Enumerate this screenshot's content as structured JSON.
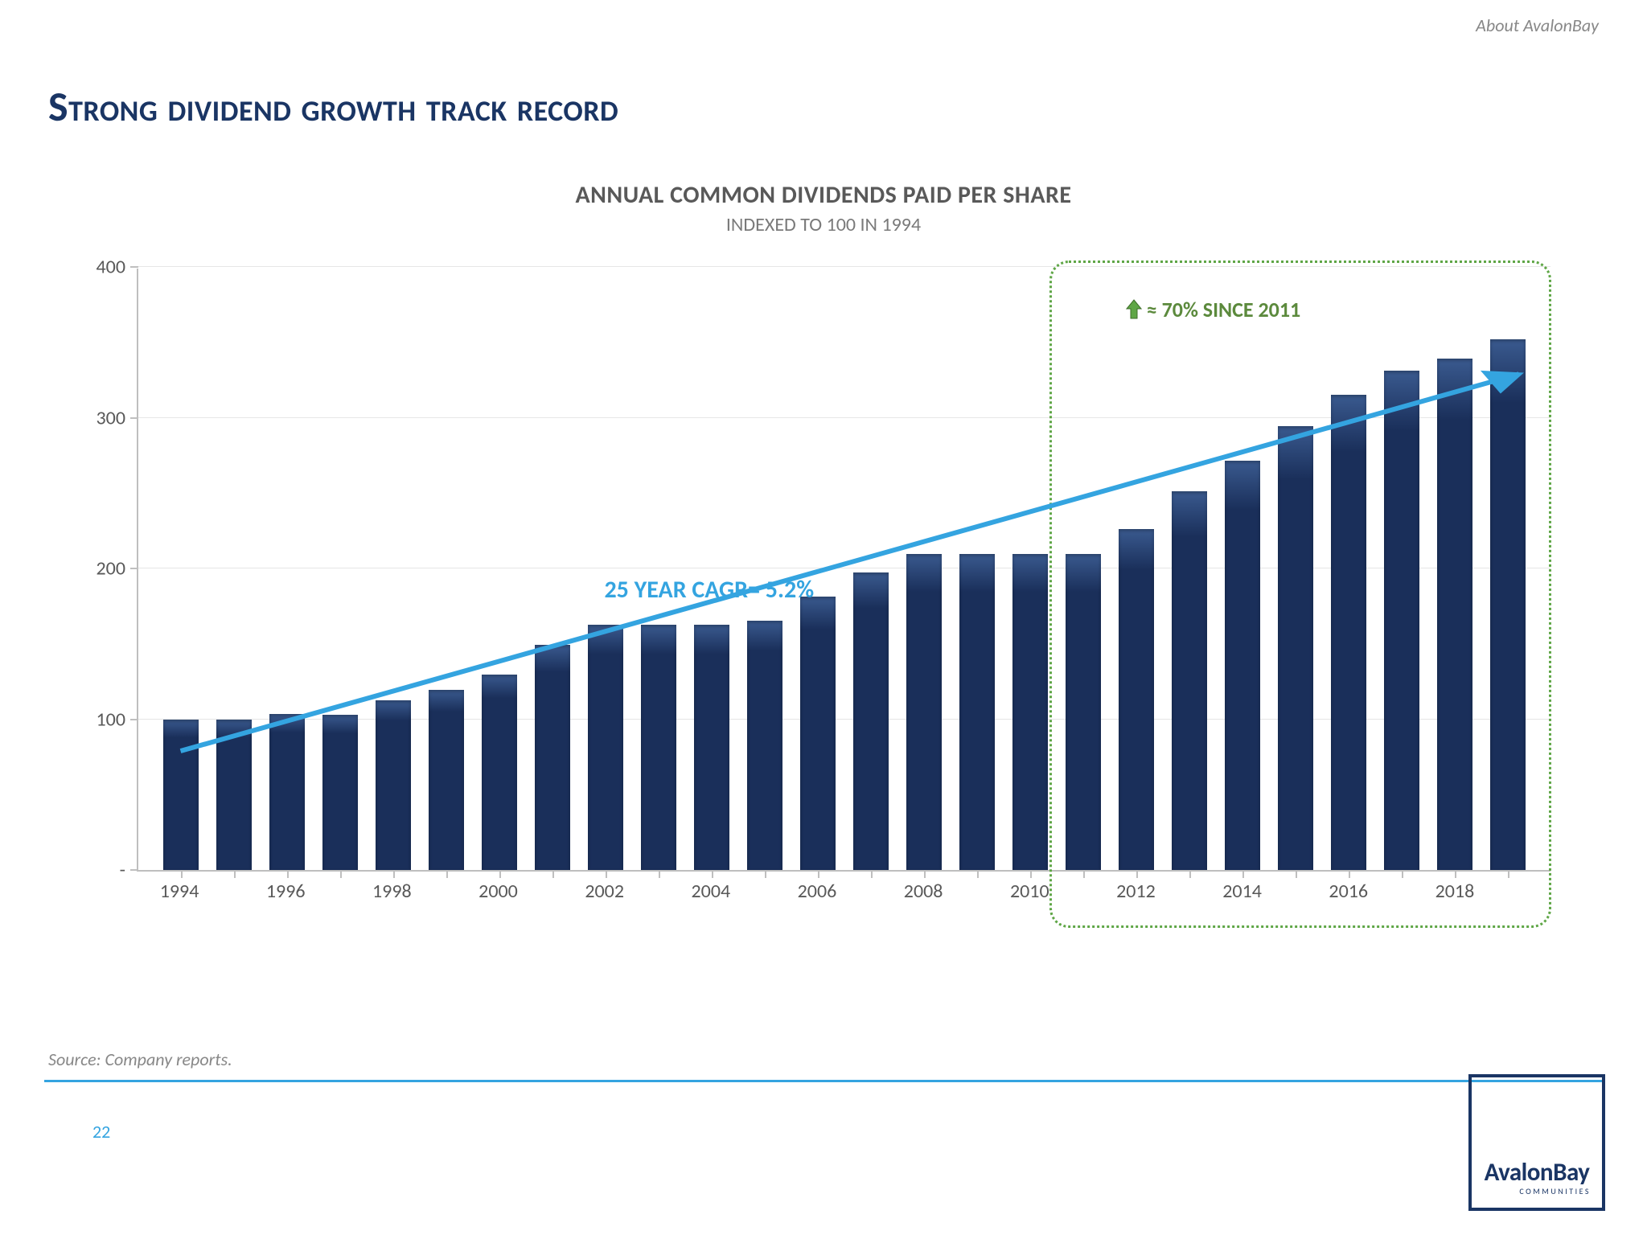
{
  "header_link": "About AvalonBay",
  "main_title": "Strong dividend growth track record",
  "chart": {
    "title": "ANNUAL COMMON DIVIDENDS PAID PER SHARE",
    "subtitle": "INDEXED TO 100 IN 1994",
    "type": "bar",
    "ylim": [
      0,
      400
    ],
    "ytick_step": 100,
    "y_ticks": [
      {
        "value": 0,
        "label": "-"
      },
      {
        "value": 100,
        "label": "100"
      },
      {
        "value": 200,
        "label": "200"
      },
      {
        "value": 300,
        "label": "300"
      },
      {
        "value": 400,
        "label": "400"
      }
    ],
    "trend_arrow_color": "#34a4e0",
    "bar_color": "#1a2f5a",
    "axis_color": "#bfbfbf",
    "grid_color": "#e6e6e6",
    "categories": [
      "1994",
      "1995",
      "1996",
      "1997",
      "1998",
      "1999",
      "2000",
      "2001",
      "2002",
      "2003",
      "2004",
      "2005",
      "2006",
      "2007",
      "2008",
      "2009",
      "2010",
      "2011",
      "2012",
      "2013",
      "2014",
      "2015",
      "2016",
      "2017",
      "2018",
      "2019"
    ],
    "x_labels_shown": [
      "1994",
      "",
      "1996",
      "",
      "1998",
      "",
      "2000",
      "",
      "2002",
      "",
      "2004",
      "",
      "2006",
      "",
      "2008",
      "",
      "2010",
      "",
      "2012",
      "",
      "2014",
      "",
      "2016",
      "",
      "2018",
      ""
    ],
    "values": [
      100,
      100,
      104,
      103,
      113,
      120,
      130,
      150,
      163,
      163,
      163,
      166,
      182,
      198,
      210,
      210,
      210,
      210,
      227,
      252,
      272,
      295,
      316,
      332,
      340,
      353
    ],
    "cagr_label": "25 YEAR CAGR= 5.2%",
    "highlight_label": "≈ 70% SINCE 2011",
    "highlight_color": "#5fa646",
    "highlight_start_index": 17,
    "highlight_end_index": 25
  },
  "source": "Source:  Company reports.",
  "page_number": "22",
  "logo": {
    "main": "AvalonBay",
    "sub": "COMMUNITIES"
  }
}
